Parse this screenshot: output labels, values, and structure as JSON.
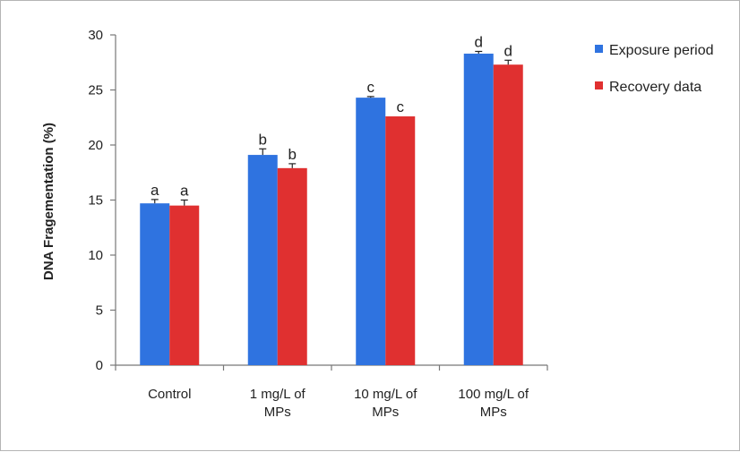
{
  "chart_data": {
    "type": "bar",
    "title": "",
    "xlabel": "",
    "ylabel": "DNA Fragementation (%)",
    "ylim": [
      0,
      30
    ],
    "yticks": [
      "0",
      "5",
      "10",
      "15",
      "20",
      "25",
      "30"
    ],
    "grid": false,
    "legend_position": "top-right",
    "categories": [
      [
        "Control"
      ],
      [
        "1 mg/L of",
        "MPs"
      ],
      [
        "10 mg/L of",
        "MPs"
      ],
      [
        "100 mg/L of",
        "MPs"
      ]
    ],
    "series": [
      {
        "name": "Exposure period",
        "color": "#2f73e0",
        "values": [
          14.7,
          19.1,
          24.3,
          28.3
        ],
        "errors": [
          0.35,
          0.55,
          0.1,
          0.2
        ],
        "labels": [
          "a",
          "b",
          "c",
          "d"
        ]
      },
      {
        "name": "Recovery data",
        "color": "#e03030",
        "values": [
          14.5,
          17.9,
          22.6,
          27.3
        ],
        "errors": [
          0.5,
          0.4,
          0.0,
          0.4
        ],
        "labels": [
          "a",
          "b",
          "c",
          "d"
        ]
      }
    ]
  }
}
